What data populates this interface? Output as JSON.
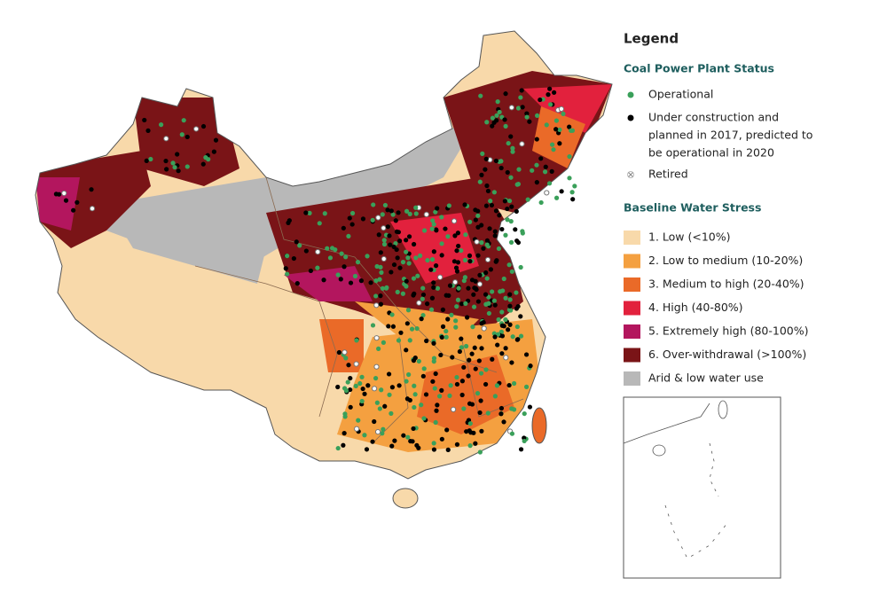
{
  "legend": {
    "title": "Legend",
    "plant_status": {
      "title": "Coal Power Plant Status",
      "items": [
        {
          "label": [
            "Operational"
          ],
          "color": "#3aa05a"
        },
        {
          "label": [
            "Under construction and",
            "planned in 2017, predicted to",
            "be operational in 2020"
          ],
          "color": "#000000"
        },
        {
          "label": [
            "Retired"
          ],
          "color": "#bbbbbb"
        }
      ]
    },
    "water_stress": {
      "title": "Baseline Water Stress",
      "items": [
        {
          "label": "1. Low (<10%)",
          "color": "#f8d9aa"
        },
        {
          "label": "2. Low to medium (10-20%)",
          "color": "#f4a040"
        },
        {
          "label": "3. Medium to high (20-40%)",
          "color": "#ea6a28"
        },
        {
          "label": "4. High (40-80%)",
          "color": "#e2213d"
        },
        {
          "label": "5. Extremely high (80-100%)",
          "color": "#b3165e"
        },
        {
          "label": "6. Over-withdrawal (>100%)",
          "color": "#7a1417"
        },
        {
          "label": "Arid & low water use",
          "color": "#b8b8b8"
        }
      ]
    }
  }
}
